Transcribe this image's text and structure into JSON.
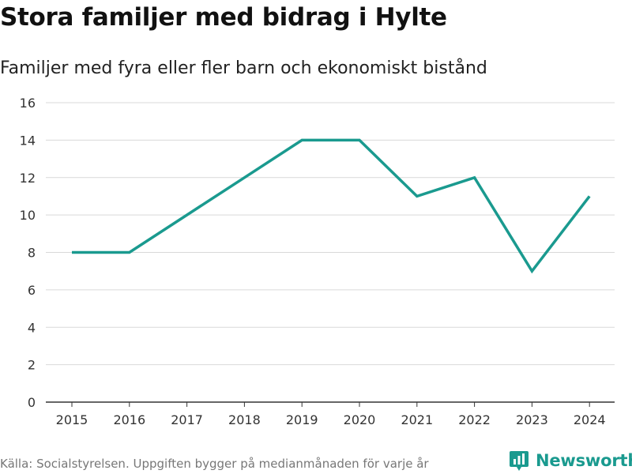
{
  "chart_data": {
    "type": "line",
    "title": "Stora familjer med bidrag i Hylte",
    "subtitle": "Familjer med fyra eller fler barn och ekonomiskt bistånd",
    "x": [
      "2015",
      "2016",
      "2017",
      "2018",
      "2019",
      "2020",
      "2021",
      "2022",
      "2023",
      "2024"
    ],
    "series": [
      {
        "name": "Familjer",
        "values": [
          8,
          8,
          10,
          12,
          14,
          14,
          11,
          12,
          7,
          11
        ]
      }
    ],
    "ylim": [
      0,
      16
    ],
    "yticks": [
      "0",
      "2",
      "4",
      "6",
      "8",
      "10",
      "12",
      "14",
      "16"
    ],
    "xlabel": "",
    "ylabel": "",
    "grid": true,
    "line_color": "#1a9a8f"
  },
  "footer": {
    "source": "Källa: Socialstyrelsen. Uppgiften bygger på medianmånaden för varje år"
  },
  "logo": {
    "text": "Newsworthy",
    "color": "#1a9a8f"
  }
}
